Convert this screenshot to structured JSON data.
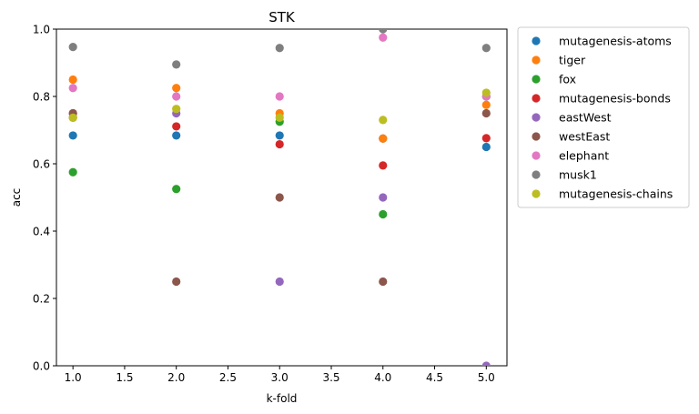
{
  "chart_data": {
    "type": "scatter",
    "title": "STK",
    "xlabel": "k-fold",
    "ylabel": "acc",
    "xlim": [
      0.84,
      5.2
    ],
    "ylim": [
      0.0,
      1.0
    ],
    "xticks": [
      "1.0",
      "1.5",
      "2.0",
      "2.5",
      "3.0",
      "3.5",
      "4.0",
      "4.5",
      "5.0"
    ],
    "yticks": [
      "0.0",
      "0.2",
      "0.4",
      "0.6",
      "0.8",
      "1.0"
    ],
    "grid": false,
    "legend_position": "outside-right",
    "series": [
      {
        "name": "mutagenesis-atoms",
        "color": "#1f77b4",
        "x": [
          1,
          2,
          3,
          4,
          5
        ],
        "y": [
          0.684,
          0.684,
          0.684,
          0.675,
          0.65
        ]
      },
      {
        "name": "tiger",
        "color": "#ff7f0e",
        "x": [
          1,
          2,
          3,
          4,
          5
        ],
        "y": [
          0.85,
          0.825,
          0.75,
          0.675,
          0.775
        ]
      },
      {
        "name": "fox",
        "color": "#2ca02c",
        "x": [
          1,
          2,
          3,
          4,
          5
        ],
        "y": [
          0.575,
          0.525,
          0.725,
          0.45,
          0.8
        ]
      },
      {
        "name": "mutagenesis-bonds",
        "color": "#d62728",
        "x": [
          1,
          2,
          3,
          4,
          5
        ],
        "y": [
          0.737,
          0.711,
          0.658,
          0.595,
          0.676
        ]
      },
      {
        "name": "eastWest",
        "color": "#9467bd",
        "x": [
          1,
          2,
          3,
          4,
          5
        ],
        "y": [
          0.75,
          0.75,
          0.25,
          0.5,
          0.0
        ]
      },
      {
        "name": "westEast",
        "color": "#8c564b",
        "x": [
          1,
          2,
          3,
          4,
          5
        ],
        "y": [
          0.75,
          0.25,
          0.5,
          0.25,
          0.75
        ]
      },
      {
        "name": "elephant",
        "color": "#e377c2",
        "x": [
          1,
          2,
          3,
          4,
          5
        ],
        "y": [
          0.825,
          0.8,
          0.8,
          0.975,
          0.8
        ]
      },
      {
        "name": "musk1",
        "color": "#7f7f7f",
        "x": [
          1,
          2,
          3,
          4,
          5
        ],
        "y": [
          0.947,
          0.895,
          0.944,
          1.0,
          0.944
        ]
      },
      {
        "name": "mutagenesis-chains",
        "color": "#bcbd22",
        "x": [
          1,
          2,
          3,
          4,
          5
        ],
        "y": [
          0.737,
          0.763,
          0.737,
          0.73,
          0.811
        ]
      }
    ]
  }
}
